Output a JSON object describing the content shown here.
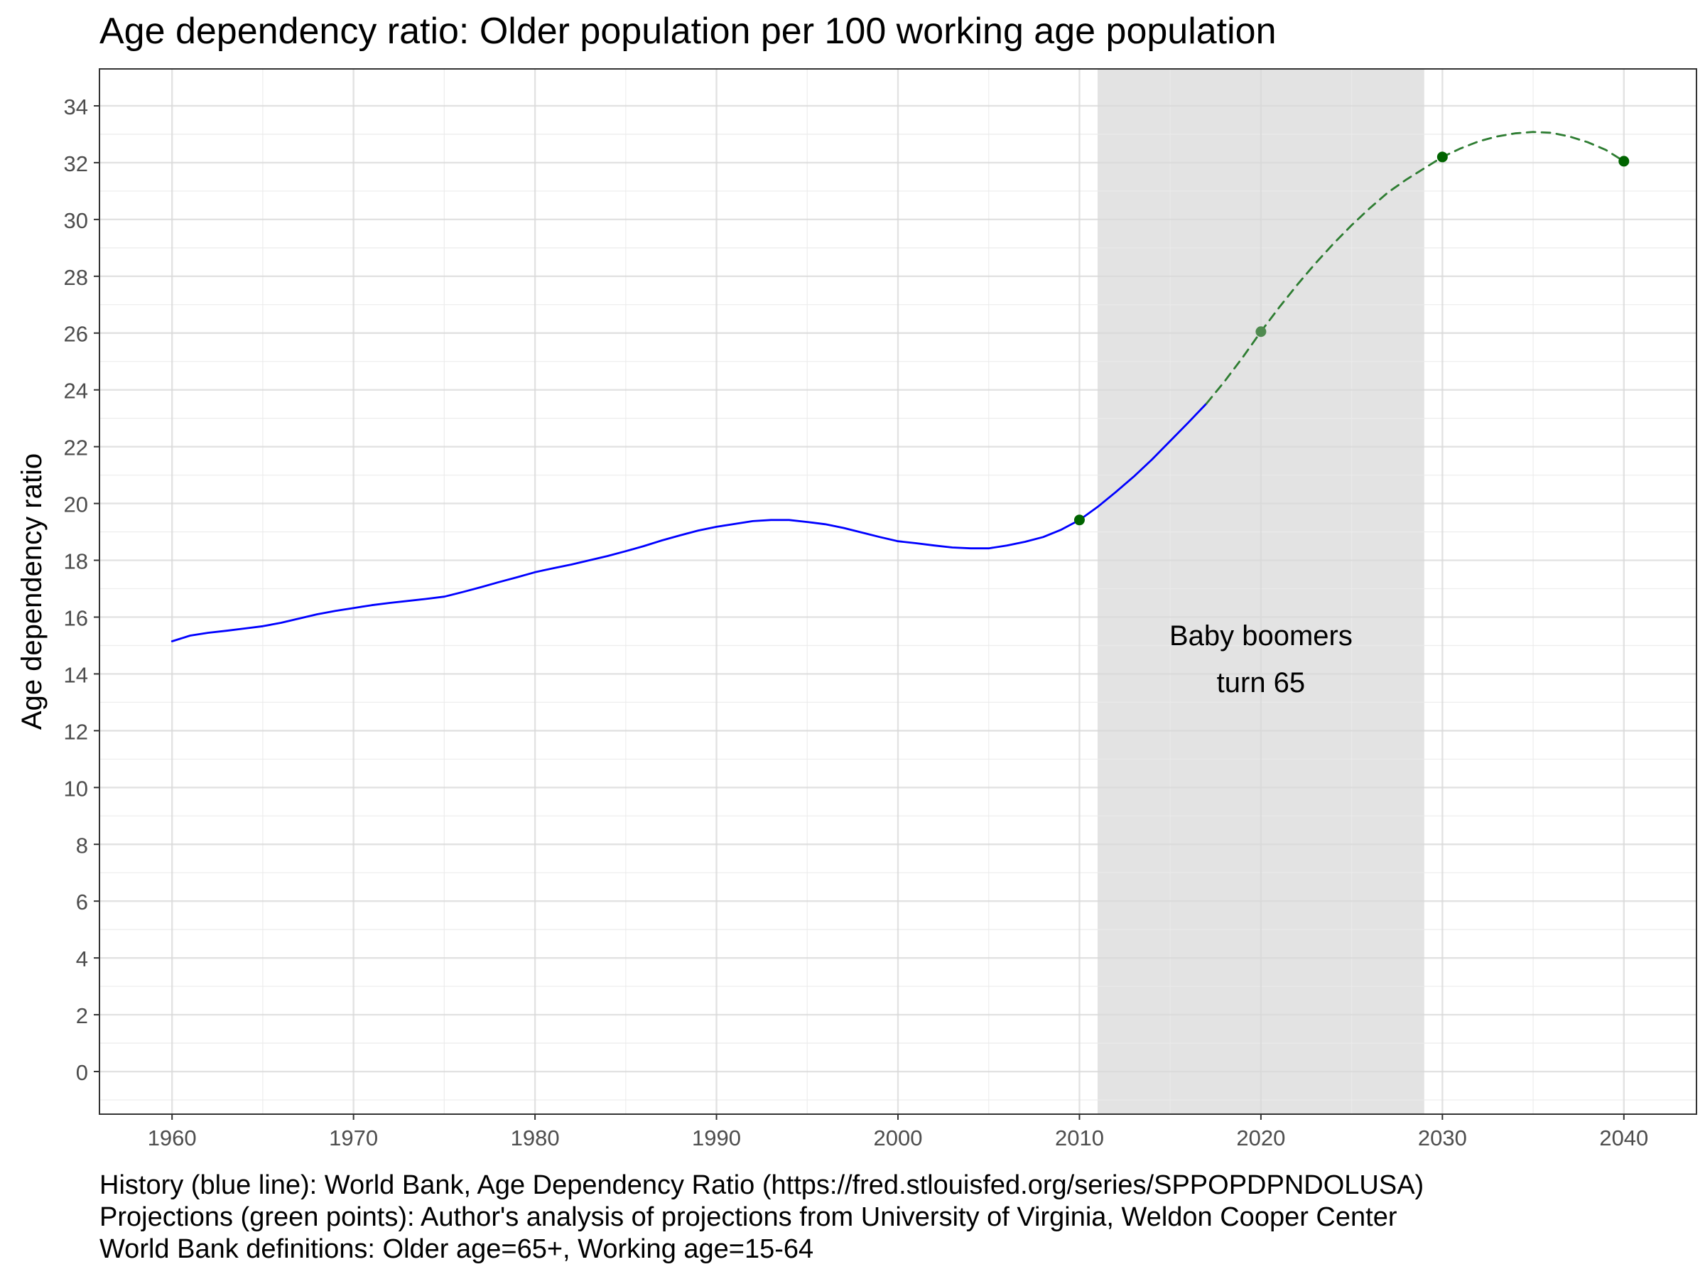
{
  "chart_data": {
    "type": "line",
    "title": "Age dependency ratio: Older population per 100 working age population",
    "xlabel": "",
    "ylabel": "Age dependency ratio",
    "xlim": [
      1956,
      2044
    ],
    "ylim": [
      -1.5,
      35.3
    ],
    "x_ticks": [
      1960,
      1970,
      1980,
      1990,
      2000,
      2010,
      2020,
      2030,
      2040
    ],
    "x_tick_labels": [
      "1960",
      "1970",
      "1980",
      "1990",
      "2000",
      "2010",
      "2020",
      "2030",
      "2040"
    ],
    "y_ticks": [
      0,
      2,
      4,
      6,
      8,
      10,
      12,
      14,
      16,
      18,
      20,
      22,
      24,
      26,
      28,
      30,
      32,
      34
    ],
    "y_tick_labels": [
      "0",
      "2",
      "4",
      "6",
      "8",
      "10",
      "12",
      "14",
      "16",
      "18",
      "20",
      "22",
      "24",
      "26",
      "28",
      "30",
      "32",
      "34"
    ],
    "grid": true,
    "shaded_region": {
      "x": [
        2011,
        2029
      ],
      "label_lines": [
        "Baby boomers",
        "turn 65"
      ]
    },
    "series": [
      {
        "name": "",
        "style": "solid",
        "color": "#0000ff",
        "points": [
          [
            1960,
            15.15
          ],
          [
            1961,
            15.35
          ],
          [
            1962,
            15.45
          ],
          [
            1963,
            15.52
          ],
          [
            1964,
            15.6
          ],
          [
            1965,
            15.68
          ],
          [
            1966,
            15.8
          ],
          [
            1967,
            15.95
          ],
          [
            1968,
            16.1
          ],
          [
            1969,
            16.22
          ],
          [
            1970,
            16.32
          ],
          [
            1971,
            16.42
          ],
          [
            1972,
            16.5
          ],
          [
            1973,
            16.57
          ],
          [
            1974,
            16.64
          ],
          [
            1975,
            16.72
          ],
          [
            1976,
            16.88
          ],
          [
            1977,
            17.05
          ],
          [
            1978,
            17.23
          ],
          [
            1979,
            17.4
          ],
          [
            1980,
            17.58
          ],
          [
            1981,
            17.72
          ],
          [
            1982,
            17.85
          ],
          [
            1983,
            18.0
          ],
          [
            1984,
            18.15
          ],
          [
            1985,
            18.32
          ],
          [
            1986,
            18.5
          ],
          [
            1987,
            18.7
          ],
          [
            1988,
            18.88
          ],
          [
            1989,
            19.05
          ],
          [
            1990,
            19.18
          ],
          [
            1991,
            19.28
          ],
          [
            1992,
            19.38
          ],
          [
            1993,
            19.42
          ],
          [
            1994,
            19.42
          ],
          [
            1995,
            19.35
          ],
          [
            1996,
            19.27
          ],
          [
            1997,
            19.14
          ],
          [
            1998,
            18.98
          ],
          [
            1999,
            18.82
          ],
          [
            2000,
            18.67
          ],
          [
            2001,
            18.6
          ],
          [
            2002,
            18.52
          ],
          [
            2003,
            18.45
          ],
          [
            2004,
            18.42
          ],
          [
            2005,
            18.42
          ],
          [
            2006,
            18.52
          ],
          [
            2007,
            18.65
          ],
          [
            2008,
            18.82
          ],
          [
            2009,
            19.08
          ],
          [
            2010,
            19.42
          ],
          [
            2011,
            19.88
          ],
          [
            2012,
            20.4
          ],
          [
            2013,
            20.95
          ],
          [
            2014,
            21.55
          ],
          [
            2015,
            22.2
          ],
          [
            2016,
            22.85
          ],
          [
            2017,
            23.52
          ]
        ]
      },
      {
        "name": "",
        "style": "dashed",
        "color": "#2e7d32",
        "points": [
          [
            2017,
            23.52
          ],
          [
            2018,
            24.3
          ],
          [
            2019,
            25.15
          ],
          [
            2020,
            26.05
          ],
          [
            2021,
            26.9
          ],
          [
            2022,
            27.7
          ],
          [
            2023,
            28.45
          ],
          [
            2024,
            29.15
          ],
          [
            2025,
            29.8
          ],
          [
            2026,
            30.4
          ],
          [
            2027,
            30.95
          ],
          [
            2028,
            31.4
          ],
          [
            2029,
            31.8
          ],
          [
            2030,
            32.2
          ],
          [
            2031,
            32.5
          ],
          [
            2032,
            32.75
          ],
          [
            2033,
            32.92
          ],
          [
            2034,
            33.03
          ],
          [
            2035,
            33.08
          ],
          [
            2036,
            33.05
          ],
          [
            2037,
            32.92
          ],
          [
            2038,
            32.72
          ],
          [
            2039,
            32.45
          ],
          [
            2040,
            32.05
          ]
        ]
      }
    ],
    "markers": [
      {
        "x": 2010,
        "y": 19.42,
        "color": "#006400"
      },
      {
        "x": 2020,
        "y": 26.05,
        "color": "#4f8a4f"
      },
      {
        "x": 2030,
        "y": 32.2,
        "color": "#006400"
      },
      {
        "x": 2040,
        "y": 32.05,
        "color": "#006400"
      }
    ]
  },
  "caption": {
    "line1": "History (blue line): World Bank, Age Dependency Ratio (https://fred.stlouisfed.org/series/SPPOPDPNDOLUSA)",
    "line2": "Projections (green points): Author's analysis of projections from University of Virginia, Weldon Cooper Center",
    "line3": "World Bank definitions: Older age=65+, Working age=15-64"
  }
}
